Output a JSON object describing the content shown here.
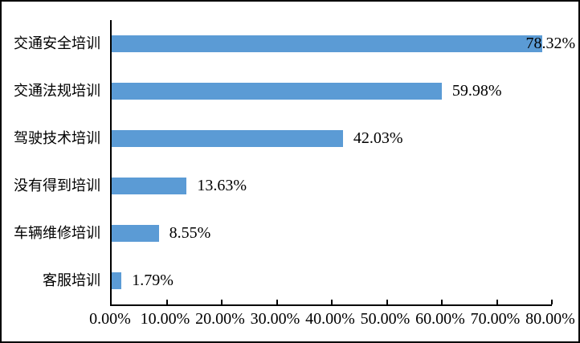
{
  "chart_data": {
    "type": "bar",
    "orientation": "horizontal",
    "title": "",
    "xlabel": "",
    "ylabel": "",
    "categories": [
      "交通安全培训",
      "交通法规培训",
      "驾驶技术培训",
      "没有得到培训",
      "车辆维修培训",
      "客服培训"
    ],
    "values": [
      78.32,
      59.98,
      42.03,
      13.63,
      8.55,
      1.79
    ],
    "data_labels": [
      "78.32%",
      "59.98%",
      "42.03%",
      "13.63%",
      "8.55%",
      "1.79%"
    ],
    "x_tick_labels": [
      "0.00%",
      "10.00%",
      "20.00%",
      "30.00%",
      "40.00%",
      "50.00%",
      "60.00%",
      "70.00%",
      "80.00%"
    ],
    "xlim": [
      0,
      80
    ],
    "x_tick_step": 10,
    "grid": false,
    "legend": false,
    "bar_color": "#5B9BD5",
    "axis_color": "#000000",
    "label_color": "#000000",
    "background_color": "#FFFFFF"
  }
}
